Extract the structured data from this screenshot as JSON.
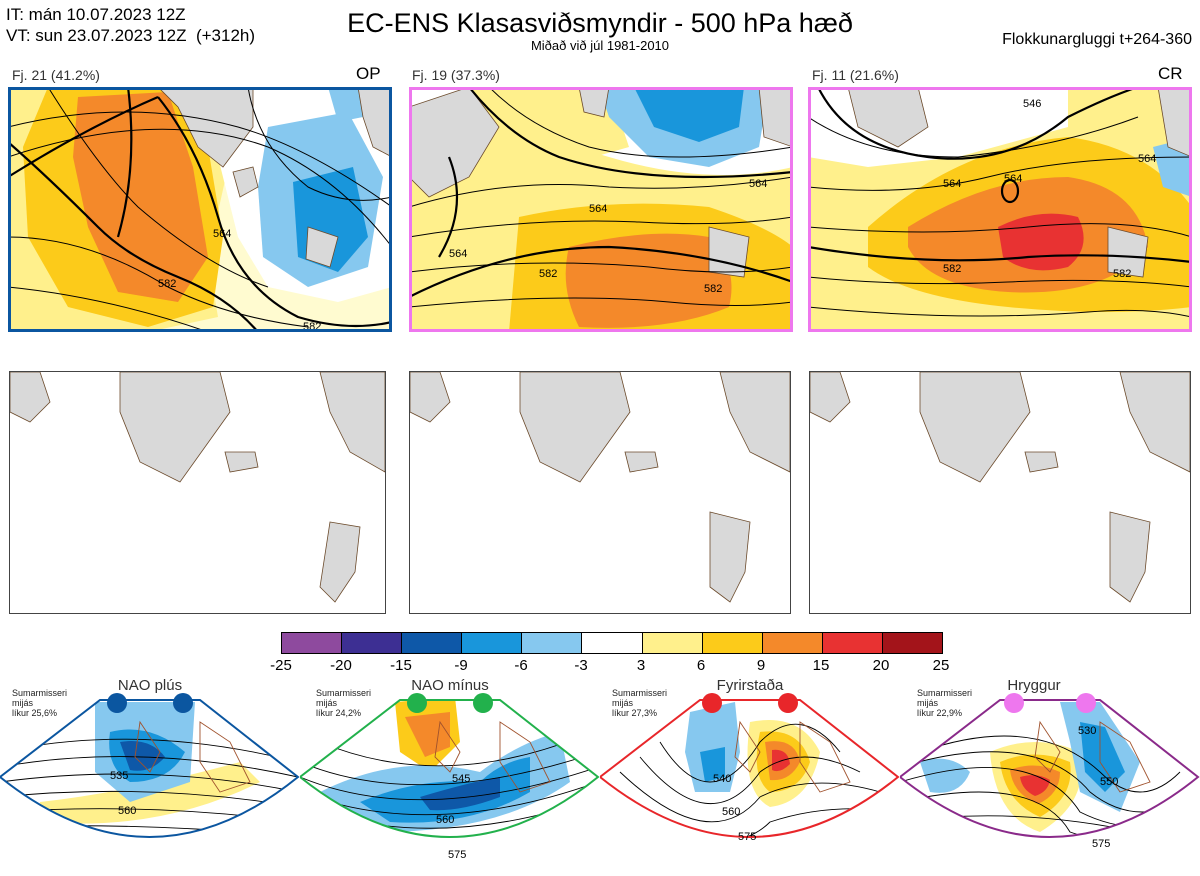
{
  "header": {
    "it_line": "IT: mán 10.07.2023 12Z",
    "vt_line": "VT: sun 23.07.2023 12Z  (+312h)",
    "title": "EC-ENS Klasasviðsmyndir - 500 hPa hæð",
    "subtitle": "Miðað við júl 1981-2010",
    "window": "Flokkunargluggi t+264-360"
  },
  "clusters": [
    {
      "label": "Fj. 21 (41.2%)",
      "tag": "OP",
      "frame_color": "#0b56a0",
      "contours": [
        "564",
        "582",
        "582"
      ]
    },
    {
      "label": "Fj. 19 (37.3%)",
      "tag": "",
      "frame_color": "#ee77ee",
      "contours": [
        "564",
        "564",
        "564",
        "582",
        "582"
      ]
    },
    {
      "label": "Fj. 11 (21.6%)",
      "tag": "CR",
      "frame_color": "#ee77ee",
      "contours": [
        "546",
        "564",
        "564",
        "564",
        "582",
        "582"
      ]
    }
  ],
  "colorbar": {
    "ticks": [
      "-25",
      "-20",
      "-15",
      "-9",
      "-6",
      "-3",
      "3",
      "6",
      "9",
      "15",
      "20",
      "25"
    ],
    "colors": [
      "#8e4a9e",
      "#3d2f93",
      "#0e58a8",
      "#1996db",
      "#86c8ef",
      "#ffffff",
      "#fff08c",
      "#fccb1a",
      "#f4892a",
      "#e83232",
      "#a3141a"
    ]
  },
  "regimes": [
    {
      "name": "NAO plús",
      "note": "Sumarmisseri\nmijás\nlíkur 25,6%",
      "dot_color": "#0b56a0",
      "frame_color": "#0b56a0",
      "contours": [
        "535",
        "560"
      ]
    },
    {
      "name": "NAO mínus",
      "note": "Sumarmisseri\nmijás\nlíkur 24,2%",
      "dot_color": "#22b14c",
      "frame_color": "#22b14c",
      "contours": [
        "545",
        "560",
        "575"
      ]
    },
    {
      "name": "Fyrirstaða",
      "note": "Sumarmisseri\nmijás\nlíkur 27,3%",
      "dot_color": "#e8262a",
      "frame_color": "#e8262a",
      "contours": [
        "540",
        "560",
        "575"
      ]
    },
    {
      "name": "Hryggur",
      "note": "Sumarmisseri\nmijás\nlíkur 22,9%",
      "dot_color": "#ee77ee",
      "frame_color": "#8a2a8a",
      "contours": [
        "530",
        "550",
        "575"
      ]
    }
  ]
}
